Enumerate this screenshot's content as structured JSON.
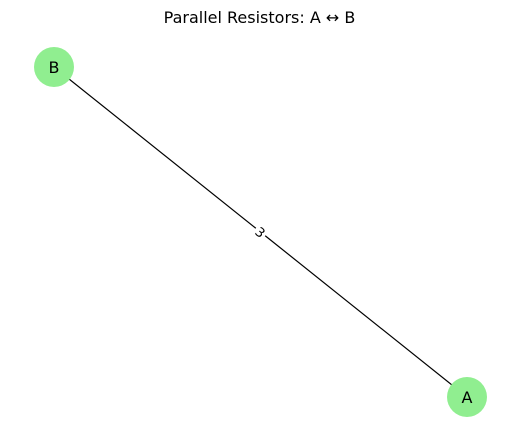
{
  "title": "Parallel Resistors: A ↔ B",
  "colors": {
    "node_fill": "#90ee90",
    "edge_stroke": "#000000",
    "background": "#ffffff"
  },
  "nodes": [
    {
      "id": "A",
      "label": "A"
    },
    {
      "id": "B",
      "label": "B"
    }
  ],
  "edges": [
    {
      "source": "B",
      "target": "A",
      "label": "3"
    }
  ]
}
